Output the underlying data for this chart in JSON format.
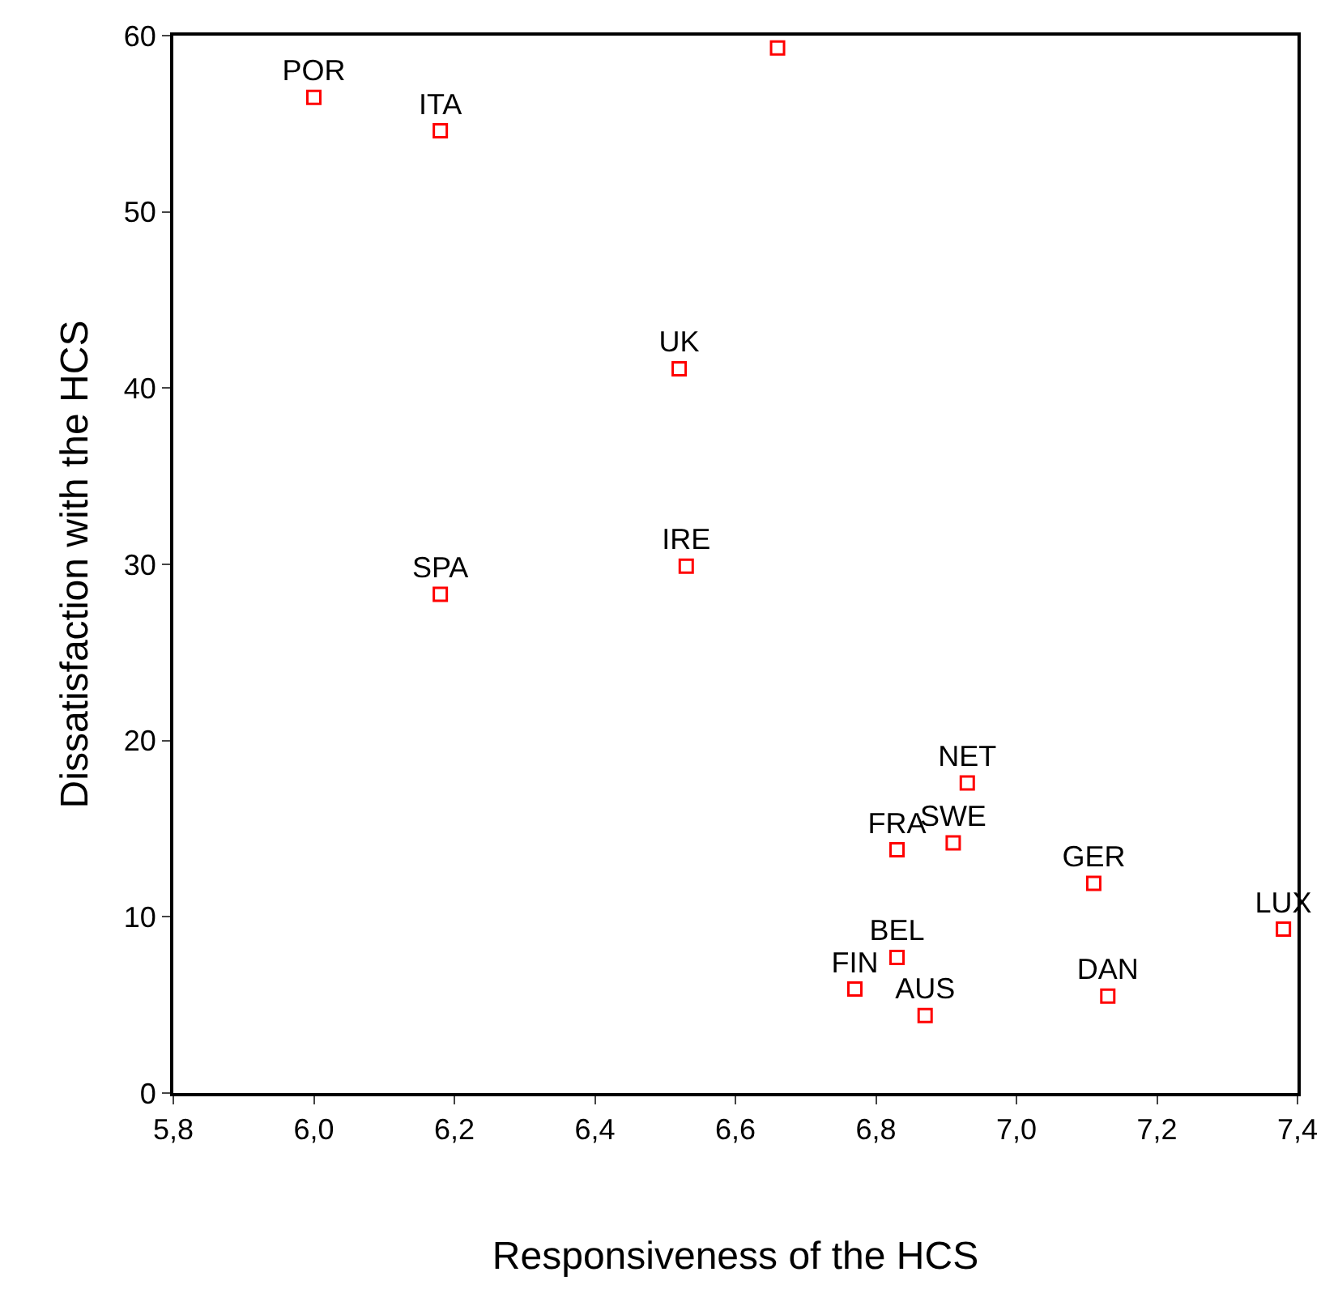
{
  "chart_data": {
    "type": "scatter",
    "xlabel": "Responsiveness of the HCS",
    "ylabel": "Dissatisfaction with the HCS",
    "x": [
      6.0,
      6.18,
      6.66,
      6.52,
      6.53,
      6.18,
      6.93,
      6.83,
      6.91,
      7.11,
      7.38,
      6.83,
      6.77,
      6.87,
      7.13
    ],
    "series": [
      {
        "color": "#ff0000",
        "values": [
          56.5,
          54.6,
          59.3,
          41.1,
          29.9,
          28.3,
          17.6,
          13.8,
          14.2,
          11.9,
          9.3,
          7.7,
          5.9,
          4.4,
          5.5
        ],
        "value_labels": [
          "POR",
          "ITA",
          null,
          "UK",
          "IRE",
          "SPA",
          "NET",
          "FRA",
          "SWE",
          "GER",
          "LUX",
          "BEL",
          "FIN",
          "AUS",
          "DAN"
        ]
      }
    ],
    "xlim": [
      5.8,
      7.4
    ],
    "xticks": [
      {
        "value": 5.8,
        "label": "5,8"
      },
      {
        "value": 6.0,
        "label": "6,0"
      },
      {
        "value": 6.2,
        "label": "6,2"
      },
      {
        "value": 6.4,
        "label": "6,4"
      },
      {
        "value": 6.6,
        "label": "6,6"
      },
      {
        "value": 6.8,
        "label": "6,8"
      },
      {
        "value": 7.0,
        "label": "7,0"
      },
      {
        "value": 7.2,
        "label": "7,2"
      },
      {
        "value": 7.4,
        "label": "7,4"
      }
    ],
    "ylim": [
      0,
      60
    ],
    "yticks": [
      0,
      10,
      20,
      30,
      40,
      50,
      60
    ],
    "marker": "square"
  }
}
